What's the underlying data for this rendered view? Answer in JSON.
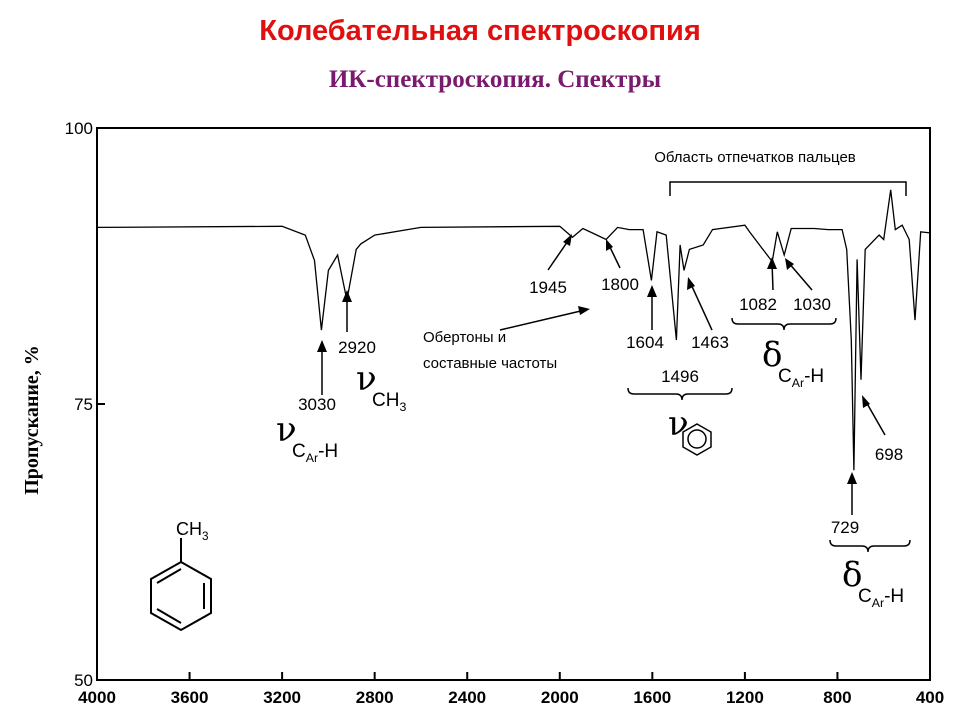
{
  "title": "Колебательная спектроскопия",
  "subtitle": "ИК-спектроскопия. Спектры",
  "chart_data": {
    "type": "line",
    "ylabel": "Пропускание, %",
    "x": [
      4000,
      3200,
      3100,
      3060,
      3030,
      3000,
      2960,
      2920,
      2880,
      2860,
      2800,
      2600,
      2000,
      1945,
      1900,
      1860,
      1800,
      1750,
      1700,
      1640,
      1604,
      1580,
      1540,
      1496,
      1480,
      1463,
      1440,
      1380,
      1340,
      1200,
      1180,
      1082,
      1060,
      1030,
      1000,
      900,
      840,
      780,
      760,
      740,
      729,
      715,
      698,
      680,
      620,
      600,
      570,
      550,
      520,
      490,
      465,
      440,
      400
    ],
    "series": [
      {
        "color": "#000000",
        "values": [
          91,
          91.1,
          90.3,
          88,
          81.7,
          87.1,
          88.5,
          84.4,
          89,
          89.5,
          90.3,
          91,
          91.1,
          90.1,
          90.9,
          90.5,
          89.9,
          91,
          90.8,
          90.8,
          86.2,
          90.6,
          90.3,
          80.8,
          89.4,
          87.1,
          89,
          89.4,
          90.8,
          91.2,
          90.6,
          87.9,
          90.6,
          88.5,
          90.9,
          90.9,
          90.8,
          90.8,
          89,
          80.8,
          69,
          88.1,
          77.2,
          89,
          90.3,
          89.9,
          94.4,
          90.8,
          91.2,
          89.9,
          82.6,
          90.6,
          90.5
        ]
      }
    ],
    "xlim": [
      4000,
      400
    ],
    "ylim": [
      50,
      100
    ],
    "xticks": [
      4000,
      3600,
      3200,
      2800,
      2400,
      2000,
      1600,
      1200,
      800,
      400
    ],
    "yticks": [
      50,
      75,
      100
    ],
    "annotations": [
      "Область отпечатков пальцев",
      "1945",
      "1800",
      "Обертоны и",
      "составные частоты",
      "1604",
      "1463",
      "1496",
      "1082",
      "1030",
      "2920",
      "3030",
      "729",
      "698"
    ],
    "band_labels": [
      {
        "symbol": "ν",
        "base": "C",
        "sub": "Ar",
        "tail": "-H"
      },
      {
        "symbol": "ν",
        "base": "CH",
        "sub": "3"
      },
      {
        "symbol": "ν"
      },
      {
        "symbol": "δ",
        "base": "C",
        "sub": "Ar",
        "tail": "-H"
      },
      {
        "symbol": "δ",
        "base": "C",
        "sub": "Ar",
        "tail": "-H"
      }
    ],
    "molecule": {
      "base": "CH",
      "sub": "3"
    }
  }
}
